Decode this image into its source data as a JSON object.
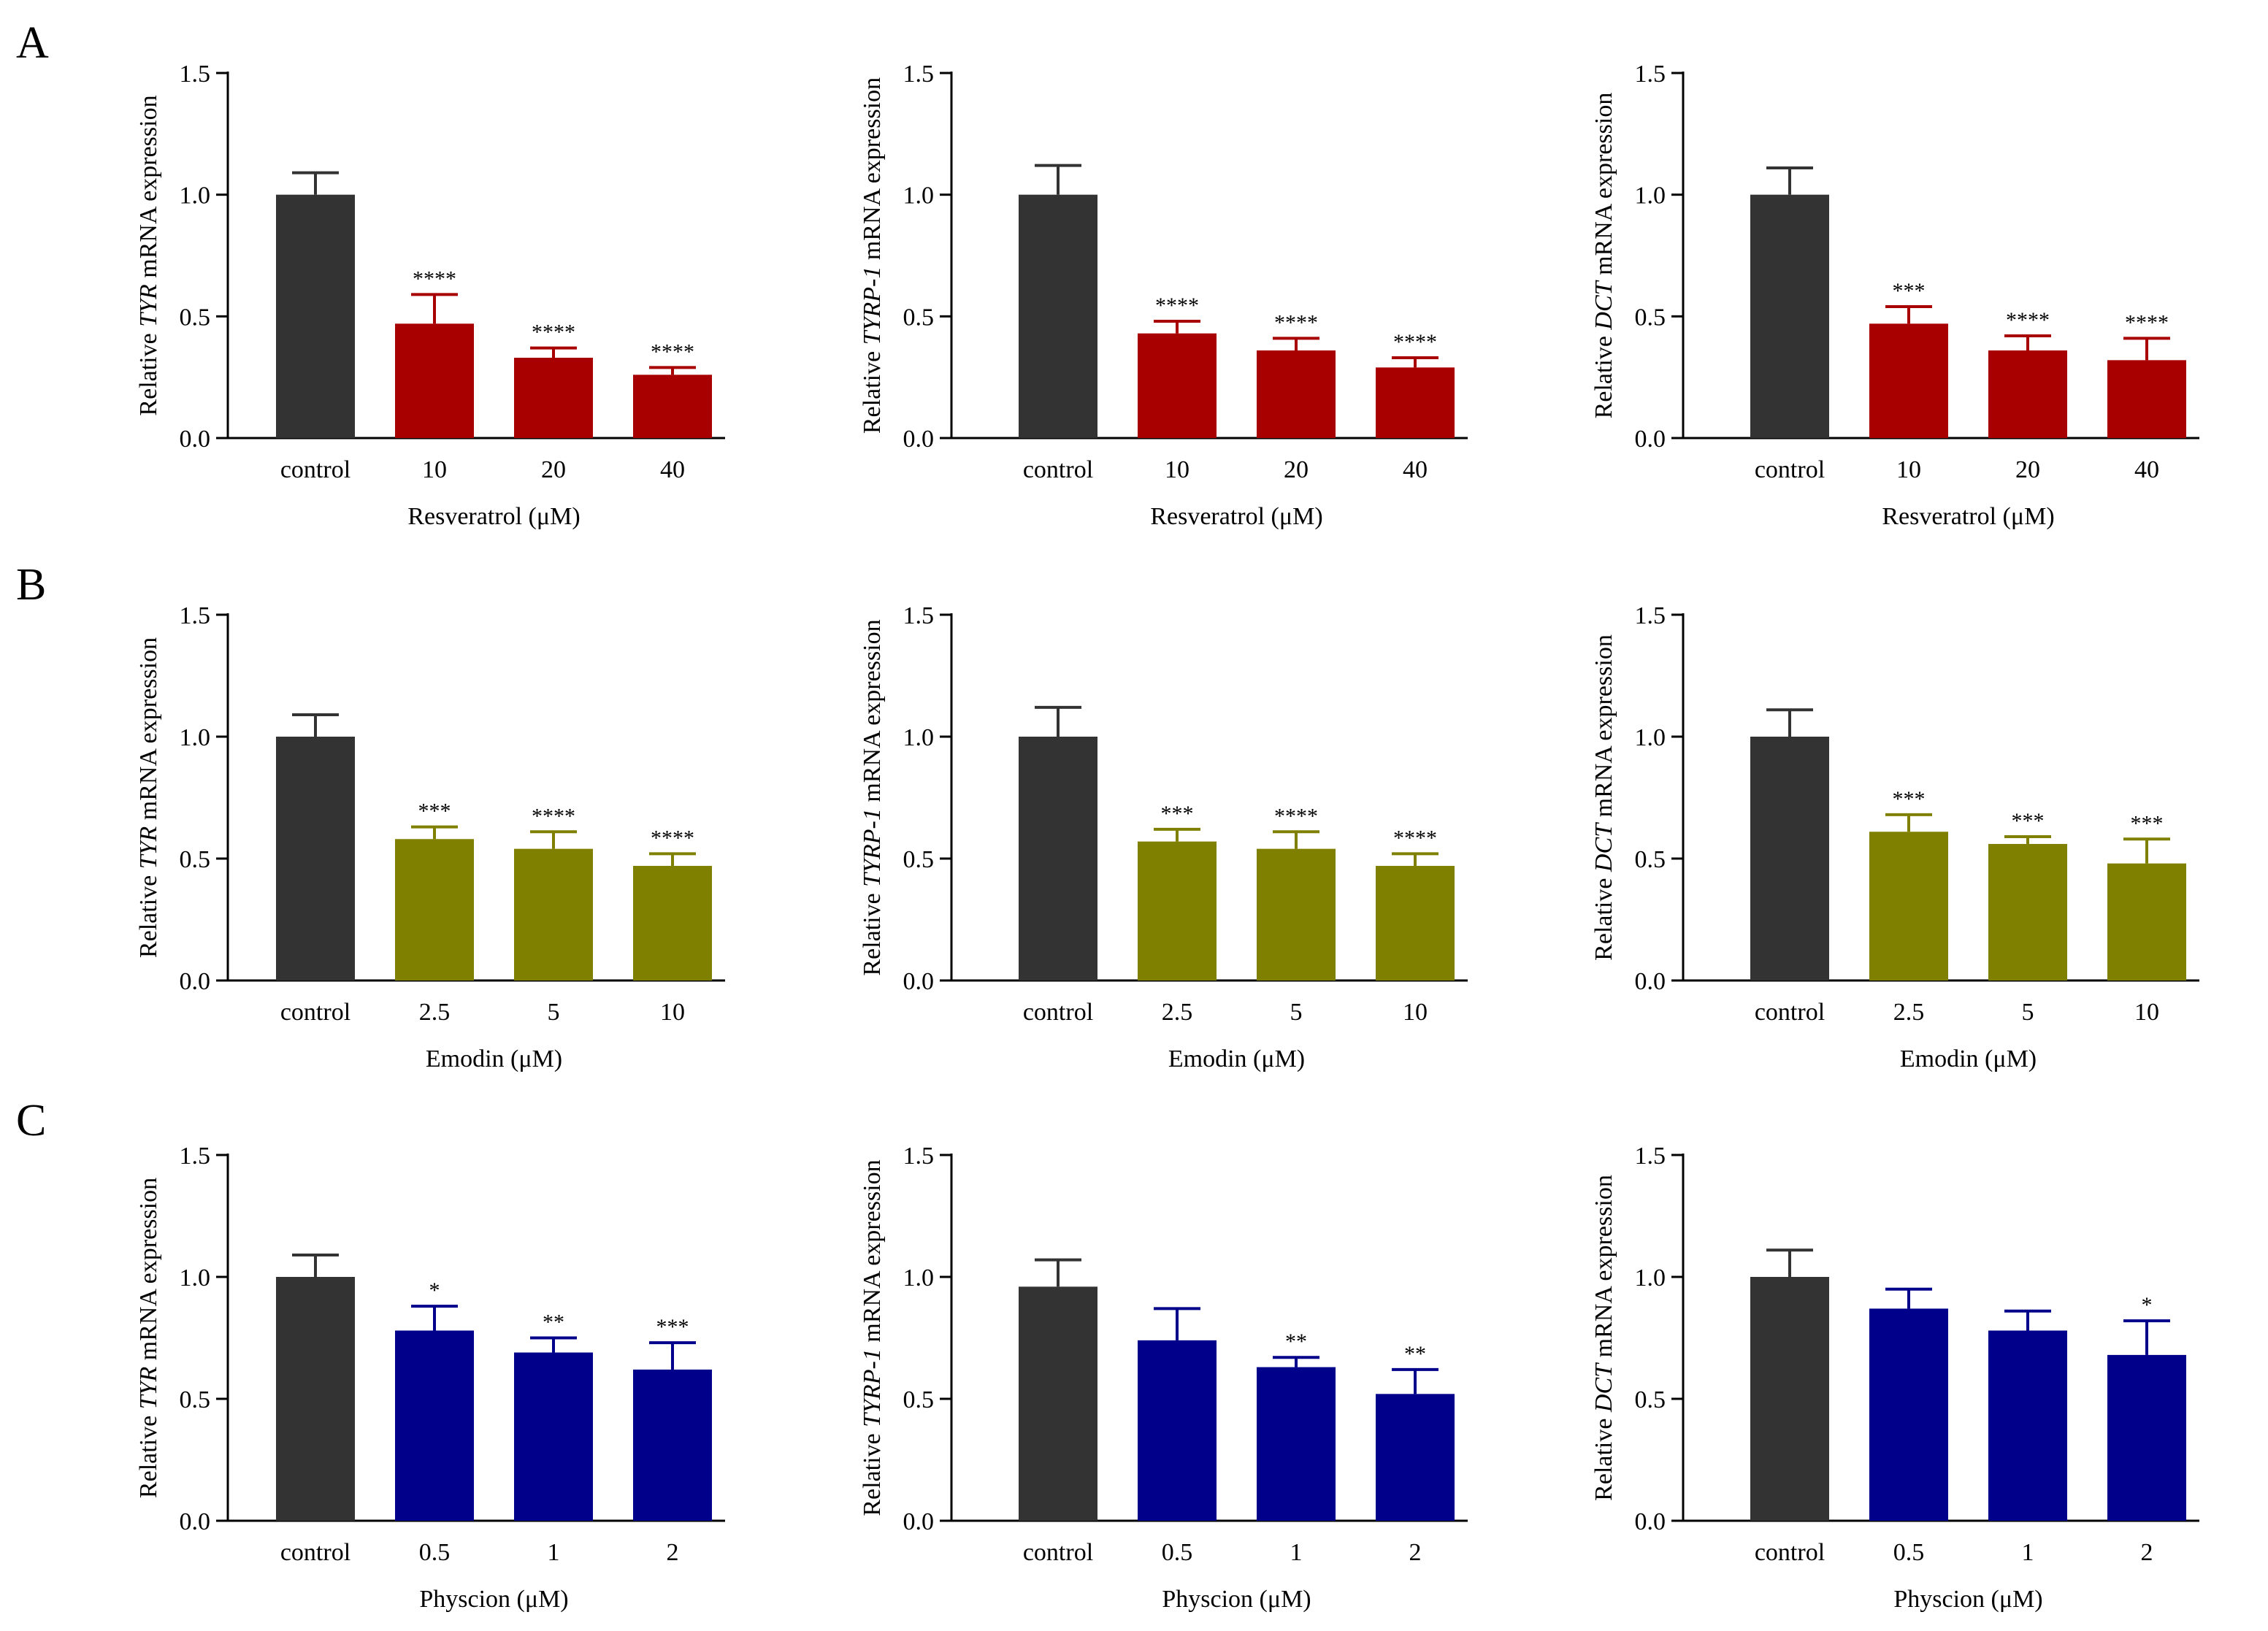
{
  "panel_labels": [
    "A",
    "B",
    "C"
  ],
  "colors": {
    "control": "#333333",
    "resveratrol": "#a80000",
    "emodin": "#808000",
    "physcion": "#00008b",
    "axis": "#000000"
  },
  "chart_data": [
    {
      "type": "bar",
      "panel": "A",
      "gene": "TYR",
      "ylabel_pre": "Relative ",
      "ylabel_gene": "TYR",
      "ylabel_post": " mRNA expression",
      "xlabel": "Resveratrol (μM)",
      "ylim": [
        0,
        1.5
      ],
      "yticks": [
        "0.0",
        "0.5",
        "1.0",
        "1.5"
      ],
      "categories": [
        "control",
        "10",
        "20",
        "40"
      ],
      "values": [
        1.0,
        0.47,
        0.33,
        0.26
      ],
      "errors": [
        0.09,
        0.12,
        0.04,
        0.03
      ],
      "significance": [
        "",
        "****",
        "****",
        "****"
      ],
      "treatment_color_key": "resveratrol"
    },
    {
      "type": "bar",
      "panel": "A",
      "gene": "TYRP-1",
      "ylabel_pre": "Relative ",
      "ylabel_gene": "TYRP-1",
      "ylabel_post": " mRNA expression",
      "xlabel": "Resveratrol (μM)",
      "ylim": [
        0,
        1.5
      ],
      "yticks": [
        "0.0",
        "0.5",
        "1.0",
        "1.5"
      ],
      "categories": [
        "control",
        "10",
        "20",
        "40"
      ],
      "values": [
        1.0,
        0.43,
        0.36,
        0.29
      ],
      "errors": [
        0.12,
        0.05,
        0.05,
        0.04
      ],
      "significance": [
        "",
        "****",
        "****",
        "****"
      ],
      "treatment_color_key": "resveratrol"
    },
    {
      "type": "bar",
      "panel": "A",
      "gene": "DCT",
      "ylabel_pre": "Relative ",
      "ylabel_gene": "DCT",
      "ylabel_post": " mRNA expression",
      "xlabel": "Resveratrol (μM)",
      "ylim": [
        0,
        1.5
      ],
      "yticks": [
        "0.0",
        "0.5",
        "1.0",
        "1.5"
      ],
      "categories": [
        "control",
        "10",
        "20",
        "40"
      ],
      "values": [
        1.0,
        0.47,
        0.36,
        0.32
      ],
      "errors": [
        0.11,
        0.07,
        0.06,
        0.09
      ],
      "significance": [
        "",
        "***",
        "****",
        "****"
      ],
      "treatment_color_key": "resveratrol"
    },
    {
      "type": "bar",
      "panel": "B",
      "gene": "TYR",
      "ylabel_pre": "Relative ",
      "ylabel_gene": "TYR",
      "ylabel_post": " mRNA expression",
      "xlabel": "Emodin (μM)",
      "ylim": [
        0,
        1.5
      ],
      "yticks": [
        "0.0",
        "0.5",
        "1.0",
        "1.5"
      ],
      "categories": [
        "control",
        "2.5",
        "5",
        "10"
      ],
      "values": [
        1.0,
        0.58,
        0.54,
        0.47
      ],
      "errors": [
        0.09,
        0.05,
        0.07,
        0.05
      ],
      "significance": [
        "",
        "***",
        "****",
        "****"
      ],
      "treatment_color_key": "emodin"
    },
    {
      "type": "bar",
      "panel": "B",
      "gene": "TYRP-1",
      "ylabel_pre": "Relative ",
      "ylabel_gene": "TYRP-1",
      "ylabel_post": " mRNA expression",
      "xlabel": "Emodin (μM)",
      "ylim": [
        0,
        1.5
      ],
      "yticks": [
        "0.0",
        "0.5",
        "1.0",
        "1.5"
      ],
      "categories": [
        "control",
        "2.5",
        "5",
        "10"
      ],
      "values": [
        1.0,
        0.57,
        0.54,
        0.47
      ],
      "errors": [
        0.12,
        0.05,
        0.07,
        0.05
      ],
      "significance": [
        "",
        "***",
        "****",
        "****"
      ],
      "treatment_color_key": "emodin"
    },
    {
      "type": "bar",
      "panel": "B",
      "gene": "DCT",
      "ylabel_pre": "Relative ",
      "ylabel_gene": "DCT",
      "ylabel_post": " mRNA expression",
      "xlabel": "Emodin (μM)",
      "ylim": [
        0,
        1.5
      ],
      "yticks": [
        "0.0",
        "0.5",
        "1.0",
        "1.5"
      ],
      "categories": [
        "control",
        "2.5",
        "5",
        "10"
      ],
      "values": [
        1.0,
        0.61,
        0.56,
        0.48
      ],
      "errors": [
        0.11,
        0.07,
        0.03,
        0.1
      ],
      "significance": [
        "",
        "***",
        "***",
        "***"
      ],
      "treatment_color_key": "emodin"
    },
    {
      "type": "bar",
      "panel": "C",
      "gene": "TYR",
      "ylabel_pre": "Relative ",
      "ylabel_gene": "TYR",
      "ylabel_post": " mRNA expression",
      "xlabel": "Physcion (μM)",
      "ylim": [
        0,
        1.5
      ],
      "yticks": [
        "0.0",
        "0.5",
        "1.0",
        "1.5"
      ],
      "categories": [
        "control",
        "0.5",
        "1",
        "2"
      ],
      "values": [
        1.0,
        0.78,
        0.69,
        0.62
      ],
      "errors": [
        0.09,
        0.1,
        0.06,
        0.11
      ],
      "significance": [
        "",
        "*",
        "**",
        "***"
      ],
      "treatment_color_key": "physcion"
    },
    {
      "type": "bar",
      "panel": "C",
      "gene": "TYRP-1",
      "ylabel_pre": "Relative ",
      "ylabel_gene": "TYRP-1",
      "ylabel_post": " mRNA expression",
      "xlabel": "Physcion (μM)",
      "ylim": [
        0,
        1.5
      ],
      "yticks": [
        "0.0",
        "0.5",
        "1.0",
        "1.5"
      ],
      "categories": [
        "control",
        "0.5",
        "1",
        "2"
      ],
      "values": [
        0.96,
        0.74,
        0.63,
        0.52
      ],
      "errors": [
        0.11,
        0.13,
        0.04,
        0.1
      ],
      "significance": [
        "",
        "",
        "**",
        "**"
      ],
      "treatment_color_key": "physcion"
    },
    {
      "type": "bar",
      "panel": "C",
      "gene": "DCT",
      "ylabel_pre": "Relative ",
      "ylabel_gene": "DCT",
      "ylabel_post": " mRNA expression",
      "xlabel": "Physcion (μM)",
      "ylim": [
        0,
        1.5
      ],
      "yticks": [
        "0.0",
        "0.5",
        "1.0",
        "1.5"
      ],
      "categories": [
        "control",
        "0.5",
        "1",
        "2"
      ],
      "values": [
        1.0,
        0.87,
        0.78,
        0.68
      ],
      "errors": [
        0.11,
        0.08,
        0.08,
        0.14
      ],
      "significance": [
        "",
        "",
        "",
        "*"
      ],
      "treatment_color_key": "physcion"
    }
  ]
}
